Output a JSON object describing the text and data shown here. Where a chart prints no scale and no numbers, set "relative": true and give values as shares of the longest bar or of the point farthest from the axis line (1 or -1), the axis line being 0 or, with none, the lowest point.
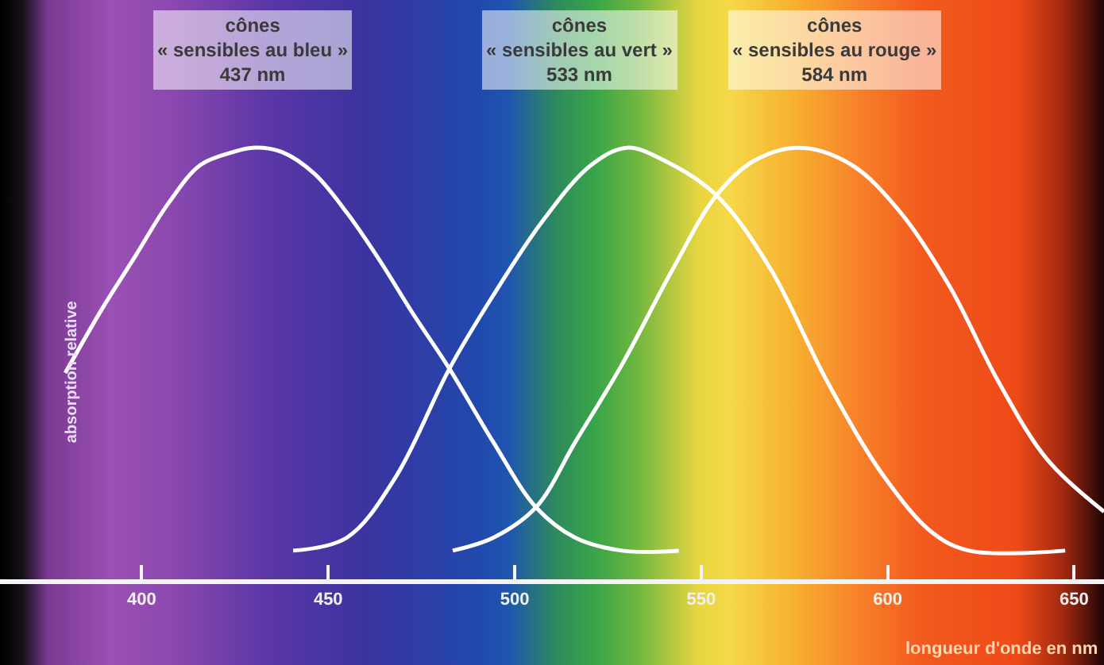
{
  "chart_data": {
    "type": "line",
    "relative": true,
    "xlabel": "longueur d'onde en nm",
    "ylabel": "absorption relative",
    "xlim": [
      362,
      658
    ],
    "xticks": [
      400,
      450,
      500,
      550,
      600,
      650
    ],
    "annotations": [
      "cônes\n« sensibles au bleu »\n437 nm",
      "cônes\n« sensibles au vert »\n533 nm",
      "cônes\n« sensibles au rouge »\n584 nm"
    ],
    "series": [
      {
        "color": "#ffffff",
        "x": [
          379.5,
          389.5,
          398.3,
          407,
          415.7,
          424.5,
          429.7,
          437.6,
          446.3,
          455,
          463.8,
          472.5,
          482.5,
          494.3,
          505.7,
          516.2,
          528.8,
          544
        ],
        "values": [
          0.48,
          0.63,
          0.75,
          0.87,
          0.96,
          0.99,
          1,
          0.99,
          0.94,
          0.85,
          0.74,
          0.62,
          0.49,
          0.32,
          0.17,
          0.1,
          0.07,
          0.07
        ]
      },
      {
        "color": "#ffffff",
        "x": [
          440.6,
          455,
          468.1,
          482.5,
          494.3,
          507.4,
          520.5,
          530.1,
          540.2,
          554.1,
          568.6,
          583.8,
          599.1,
          612.2,
          621.8,
          647.6
        ],
        "values": [
          0.07,
          0.1,
          0.24,
          0.49,
          0.66,
          0.83,
          0.96,
          1,
          0.97,
          0.89,
          0.72,
          0.46,
          0.24,
          0.11,
          0.07,
          0.07
        ]
      },
      {
        "color": "#ffffff",
        "x": [
          483.4,
          494.3,
          505.7,
          516.2,
          528.8,
          542.4,
          554.1,
          564.2,
          576.4,
          590.4,
          603.5,
          616.6,
          629.7,
          642.8,
          658
        ],
        "values": [
          0.07,
          0.1,
          0.17,
          0.32,
          0.5,
          0.72,
          0.89,
          0.97,
          1,
          0.96,
          0.85,
          0.68,
          0.46,
          0.28,
          0.16
        ]
      }
    ]
  }
}
